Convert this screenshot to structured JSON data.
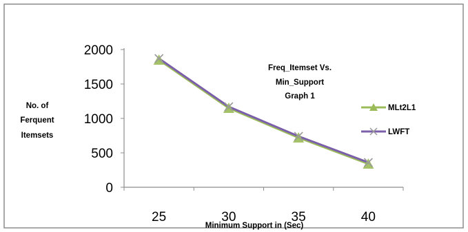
{
  "chart_data": {
    "type": "line",
    "title_lines": [
      "Freq_Itemset Vs.",
      "Min_Support",
      "Graph 1"
    ],
    "ylabel_lines": [
      "No. of",
      "Ferquent",
      "Itemsets"
    ],
    "xlabel": "Minimum Support in (Sec)",
    "categories": [
      "25",
      "30",
      "35",
      "40"
    ],
    "yticks": [
      "2000",
      "1500",
      "1000",
      "500",
      "0"
    ],
    "ylim": [
      0,
      2000
    ],
    "grid": false,
    "legend_position": "right",
    "series": [
      {
        "name": "MLt2L1",
        "values": [
          1850,
          1150,
          720,
          340
        ],
        "color": "#9BBB59",
        "marker": "triangle"
      },
      {
        "name": "LWFT",
        "values": [
          1870,
          1170,
          740,
          360
        ],
        "color": "#7B5FAA",
        "marker": "x"
      }
    ]
  }
}
